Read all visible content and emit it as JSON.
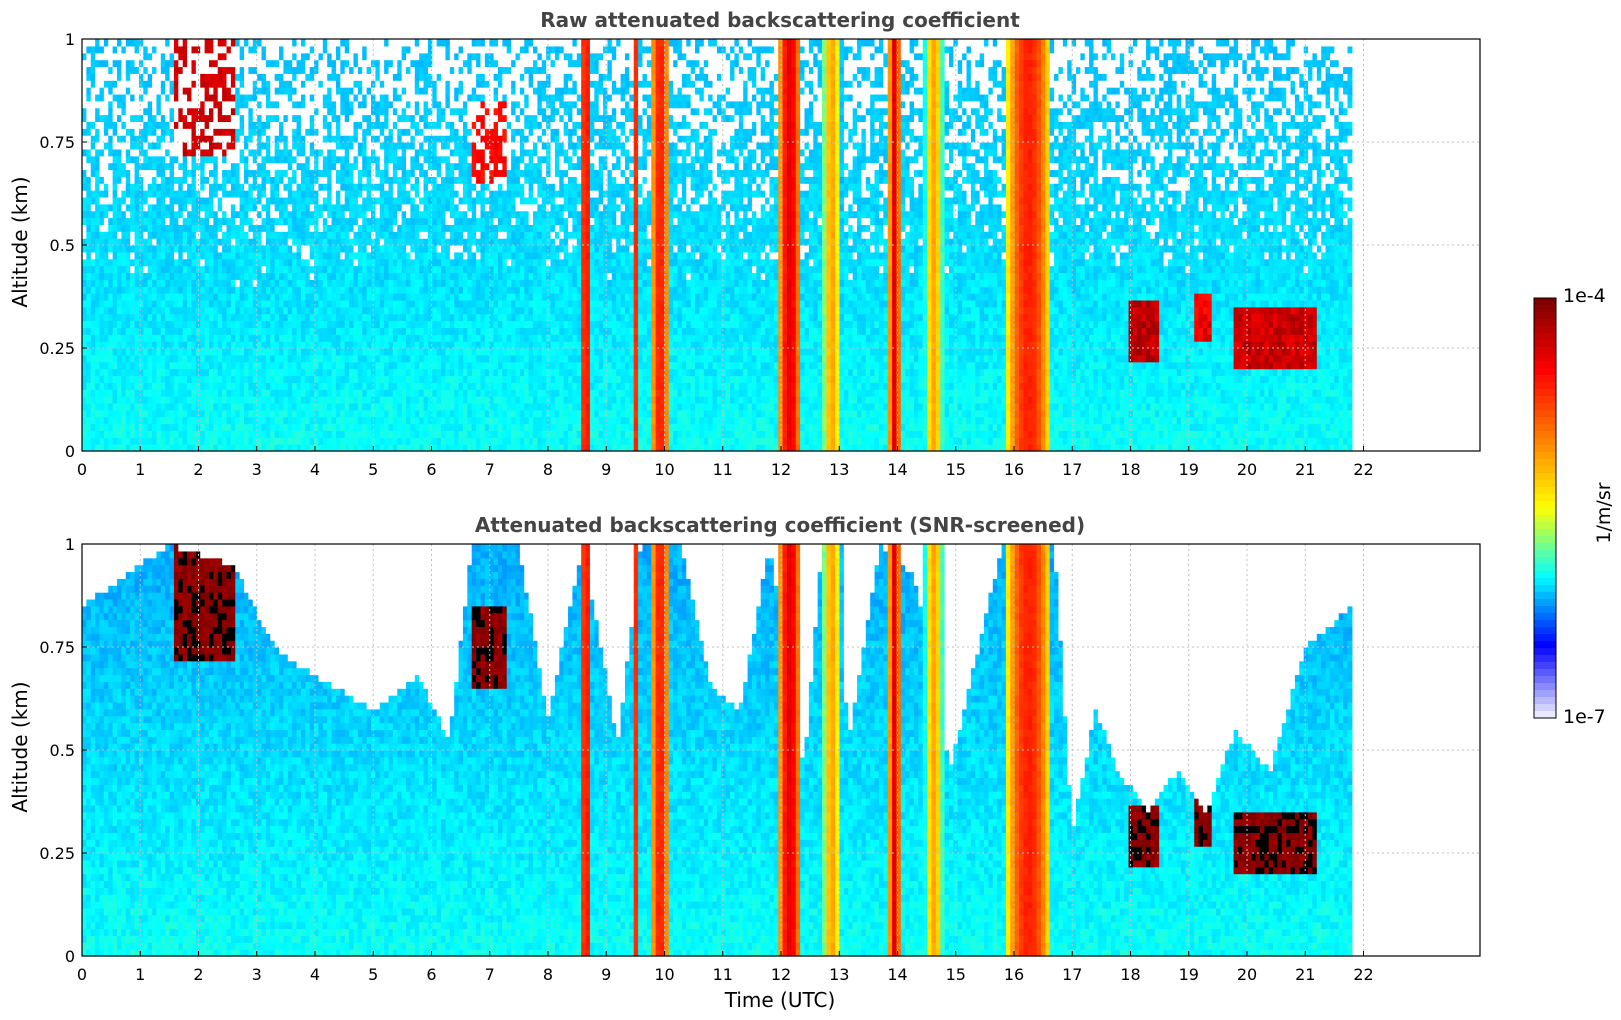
{
  "chart_data": [
    {
      "type": "heatmap",
      "title": "Raw attenuated backscattering coefficient",
      "xlabel": "",
      "ylabel": "Altitude (km)",
      "xlim": [
        0,
        24
      ],
      "ylim": [
        0,
        1
      ],
      "x_ticks": [
        "0",
        "1",
        "2",
        "3",
        "4",
        "5",
        "6",
        "7",
        "8",
        "9",
        "10",
        "11",
        "12",
        "13",
        "14",
        "15",
        "16",
        "17",
        "18",
        "19",
        "20",
        "21",
        "22"
      ],
      "y_ticks": [
        "0",
        "0.25",
        "0.5",
        "0.75",
        "1"
      ],
      "grid": true,
      "data_end_time": 21.8,
      "features": [
        {
          "kind": "column",
          "start": 8.55,
          "end": 8.75,
          "level": 0.82
        },
        {
          "kind": "column",
          "start": 9.5,
          "end": 9.55,
          "level": 0.9
        },
        {
          "kind": "column",
          "start": 9.75,
          "end": 10.1,
          "level": 0.78
        },
        {
          "kind": "column",
          "start": 11.95,
          "end": 12.35,
          "level": 0.85
        },
        {
          "kind": "column",
          "start": 12.7,
          "end": 13.05,
          "level": 0.6
        },
        {
          "kind": "column",
          "start": 13.85,
          "end": 14.05,
          "level": 0.85
        },
        {
          "kind": "column",
          "start": 14.45,
          "end": 14.8,
          "level": 0.6
        },
        {
          "kind": "column",
          "start": 15.85,
          "end": 16.65,
          "level": 0.78
        },
        {
          "kind": "layer",
          "start": 1.6,
          "end": 2.6,
          "base": 0.72,
          "top": 1.0,
          "level": 0.97
        },
        {
          "kind": "layer",
          "start": 6.7,
          "end": 7.3,
          "base": 0.65,
          "top": 0.85,
          "level": 0.9
        },
        {
          "kind": "layer",
          "start": 18.0,
          "end": 18.5,
          "base": 0.22,
          "top": 0.37,
          "level": 0.97
        },
        {
          "kind": "layer",
          "start": 19.1,
          "end": 19.4,
          "base": 0.27,
          "top": 0.38,
          "level": 0.9
        },
        {
          "kind": "layer",
          "start": 19.8,
          "end": 21.2,
          "base": 0.2,
          "top": 0.35,
          "level": 0.95
        }
      ]
    },
    {
      "type": "heatmap",
      "title": "Attenuated backscattering coefficient (SNR-screened)",
      "xlabel": "Time (UTC)",
      "ylabel": "Altitude (km)",
      "xlim": [
        0,
        24
      ],
      "ylim": [
        0,
        1
      ],
      "x_ticks": [
        "0",
        "1",
        "2",
        "3",
        "4",
        "5",
        "6",
        "7",
        "8",
        "9",
        "10",
        "11",
        "12",
        "13",
        "14",
        "15",
        "16",
        "17",
        "18",
        "19",
        "20",
        "21",
        "22"
      ],
      "y_ticks": [
        "0",
        "0.25",
        "0.5",
        "0.75",
        "1"
      ],
      "grid": true,
      "data_end_time": 21.8,
      "screen_top_km": [
        [
          0,
          0.85
        ],
        [
          1.5,
          1.0
        ],
        [
          2.6,
          0.95
        ],
        [
          3.3,
          0.75
        ],
        [
          4.0,
          0.68
        ],
        [
          5.0,
          0.6
        ],
        [
          5.8,
          0.68
        ],
        [
          6.3,
          0.52
        ],
        [
          6.7,
          1.0
        ],
        [
          7.5,
          1.0
        ],
        [
          8.0,
          0.58
        ],
        [
          8.6,
          1.0
        ],
        [
          9.2,
          0.52
        ],
        [
          9.6,
          1.0
        ],
        [
          10.3,
          1.0
        ],
        [
          10.8,
          0.65
        ],
        [
          11.3,
          0.6
        ],
        [
          11.8,
          1.0
        ],
        [
          12.4,
          0.45
        ],
        [
          12.7,
          1.0
        ],
        [
          13.2,
          0.55
        ],
        [
          13.7,
          1.0
        ],
        [
          14.3,
          0.92
        ],
        [
          14.9,
          0.45
        ],
        [
          15.8,
          1.0
        ],
        [
          16.7,
          1.0
        ],
        [
          17.0,
          0.3
        ],
        [
          17.4,
          0.6
        ],
        [
          17.8,
          0.45
        ],
        [
          18.3,
          0.35
        ],
        [
          18.8,
          0.45
        ],
        [
          19.3,
          0.35
        ],
        [
          19.8,
          0.55
        ],
        [
          20.4,
          0.45
        ],
        [
          21.0,
          0.75
        ],
        [
          21.8,
          0.85
        ]
      ],
      "features": [
        {
          "kind": "column",
          "start": 8.55,
          "end": 8.75,
          "level": 0.82
        },
        {
          "kind": "column",
          "start": 9.5,
          "end": 9.55,
          "level": 0.9
        },
        {
          "kind": "column",
          "start": 9.75,
          "end": 10.1,
          "level": 0.78
        },
        {
          "kind": "column",
          "start": 11.95,
          "end": 12.35,
          "level": 0.85
        },
        {
          "kind": "column",
          "start": 12.7,
          "end": 13.05,
          "level": 0.6
        },
        {
          "kind": "column",
          "start": 13.85,
          "end": 14.05,
          "level": 0.85
        },
        {
          "kind": "column",
          "start": 14.45,
          "end": 14.8,
          "level": 0.6
        },
        {
          "kind": "column",
          "start": 15.85,
          "end": 16.65,
          "level": 0.78
        },
        {
          "kind": "layer",
          "start": 1.6,
          "end": 2.6,
          "base": 0.72,
          "top": 1.0,
          "level": 1.05
        },
        {
          "kind": "layer",
          "start": 6.7,
          "end": 7.3,
          "base": 0.65,
          "top": 0.85,
          "level": 1.05
        },
        {
          "kind": "layer",
          "start": 18.0,
          "end": 18.5,
          "base": 0.22,
          "top": 0.37,
          "level": 1.05
        },
        {
          "kind": "layer",
          "start": 19.1,
          "end": 19.4,
          "base": 0.27,
          "top": 0.38,
          "level": 1.05
        },
        {
          "kind": "layer",
          "start": 19.8,
          "end": 21.2,
          "base": 0.2,
          "top": 0.35,
          "level": 1.05
        }
      ]
    }
  ],
  "colorbar": {
    "max_label": "1e-4",
    "min_label": "1e-7",
    "unit": "1/m/sr",
    "colormap": "jet-like",
    "colors": [
      "#e8e8ff",
      "#0000ff",
      "#00ffff",
      "#ffff00",
      "#ff8000",
      "#ff0000",
      "#800000"
    ]
  }
}
